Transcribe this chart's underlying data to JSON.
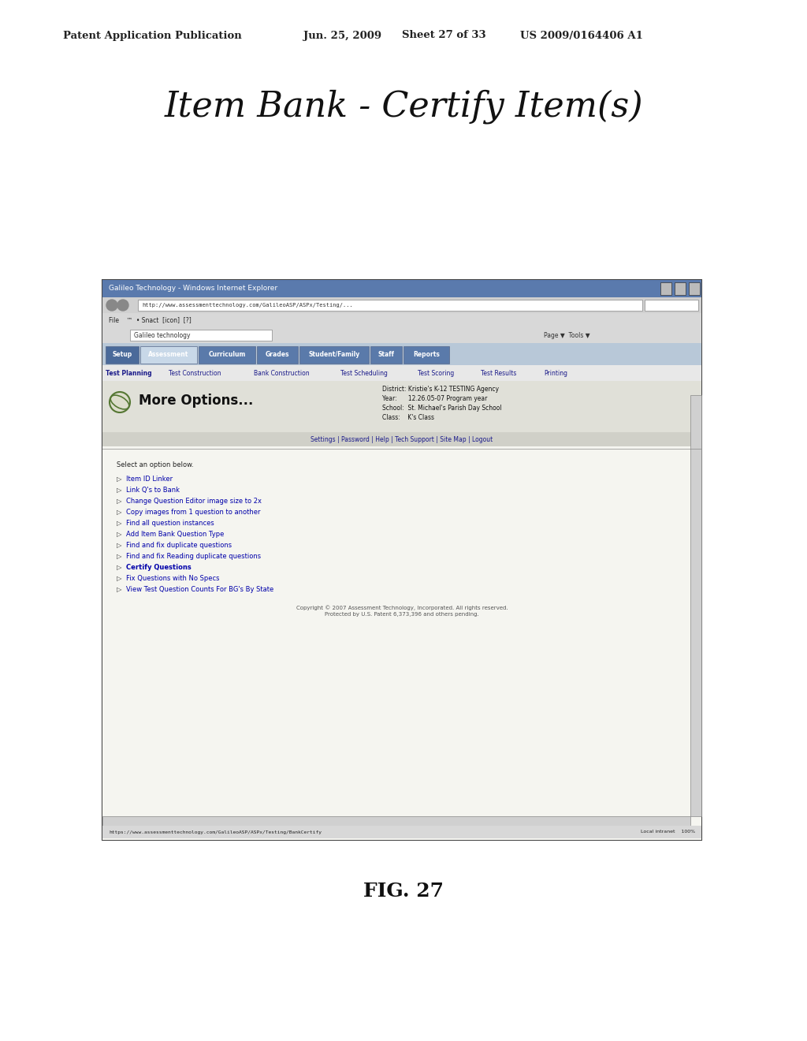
{
  "bg_color": "#ffffff",
  "header_line1": "Patent Application Publication",
  "header_date": "Jun. 25, 2009",
  "header_sheet": "Sheet 27 of 33",
  "header_patent": "US 2009/0164406 A1",
  "title": "Item Bank - Certify Item(s)",
  "fig_label": "FIG. 27",
  "browser_title": "Galileo Technology - Windows Internet Explorer",
  "address_bar": "http://www.assessmenttechnology.com/GalileoASP/ASPx/Testing/...",
  "breadcrumb_bar": "Galileo technology",
  "nav_tabs": [
    "Setup",
    "Assessment",
    "Curriculum",
    "Grades",
    "Student/Family",
    "Staff",
    "Reports"
  ],
  "sub_nav": [
    "Test Planning",
    "Test Construction",
    "Bank Construction",
    "Test Scheduling",
    "Test Scoring",
    "Test Results",
    "Printing"
  ],
  "more_options_text": "More Options...",
  "settings_bar": "Settings | Password | Help | Tech Support | Site Map | Logout",
  "select_option": "Select an option below.",
  "menu_items": [
    "Item ID Linker",
    "Link Q's to Bank",
    "Change Question Editor image size to 2x",
    "Copy images from 1 question to another",
    "Find all question instances",
    "Add Item Bank Question Type",
    "Find and fix duplicate questions",
    "Find and fix Reading duplicate questions",
    "Certify Questions",
    "Fix Questions with No Specs",
    "View Test Question Counts For BG's By State"
  ],
  "copyright_text": "Copyright © 2007 Assessment Technology, Incorporated. All rights reserved.\nProtected by U.S. Patent 6,373,396 and others pending.",
  "status_bar_left": "https://www.assessmenttechnology.com/GalileoASP/ASPx/Testing/BankCertify",
  "status_bar_right": "Local intranet    100%",
  "district_lines": [
    "District: Kristie's K-12 TESTING Agency",
    "Year:      12.26.05-07 Program year",
    "School:  St. Michael's Parish Day School",
    "Class:    K's Class"
  ]
}
